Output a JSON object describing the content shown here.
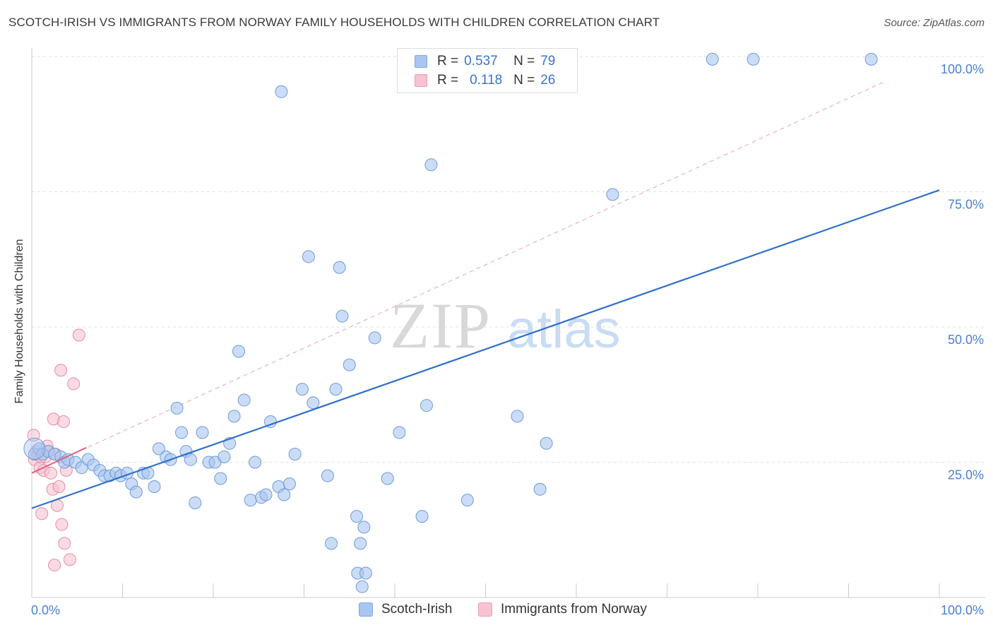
{
  "title": "SCOTCH-IRISH VS IMMIGRANTS FROM NORWAY FAMILY HOUSEHOLDS WITH CHILDREN CORRELATION CHART",
  "source": "Source: ZipAtlas.com",
  "watermark": {
    "zip": "ZIP",
    "atlas": "atlas"
  },
  "legend_top": [
    {
      "r_label": "R =",
      "r_value": "0.537",
      "n_label": "N =",
      "n_value": "79",
      "color": "#a9c6f0",
      "border": "#7ea6e0"
    },
    {
      "r_label": "R =",
      "r_value": "0.118",
      "n_label": "N =",
      "n_value": "26",
      "color": "#f7c3d2",
      "border": "#ee9ab4"
    }
  ],
  "legend_bottom": [
    {
      "label": "Scotch-Irish",
      "color": "#a9c6f0",
      "border": "#7ea6e0"
    },
    {
      "label": "Immigrants from Norway",
      "color": "#f7c3d2",
      "border": "#ee9ab4"
    }
  ],
  "chart_data": {
    "type": "scatter",
    "title": "SCOTCH-IRISH VS IMMIGRANTS FROM NORWAY FAMILY HOUSEHOLDS WITH CHILDREN CORRELATION CHART",
    "xlabel": "",
    "ylabel": "Family Households with Children",
    "xlim": [
      0,
      100
    ],
    "ylim": [
      0,
      100
    ],
    "x_tick_labels": [
      "0.0%",
      "100.0%"
    ],
    "y_ticks": [
      25,
      50,
      75,
      100
    ],
    "y_tick_labels": [
      "25.0%",
      "50.0%",
      "75.0%",
      "100.0%"
    ],
    "series": [
      {
        "name": "Scotch-Irish",
        "color": "#a9c6f0",
        "edge": "#6f9ad8",
        "trend": {
          "x": [
            0,
            100
          ],
          "y": [
            16.5,
            75.3
          ],
          "color": "#2f6fcc"
        },
        "points": [
          [
            0.3,
            26.5
          ],
          [
            0.8,
            27.5
          ],
          [
            1.2,
            26.5
          ],
          [
            1.8,
            27
          ],
          [
            2.5,
            26.5
          ],
          [
            3.2,
            26
          ],
          [
            3.6,
            25
          ],
          [
            4.0,
            25.5
          ],
          [
            4.8,
            25
          ],
          [
            5.5,
            24
          ],
          [
            6.2,
            25.5
          ],
          [
            6.8,
            24.5
          ],
          [
            7.5,
            23.5
          ],
          [
            8.0,
            22.5
          ],
          [
            8.6,
            22.5
          ],
          [
            9.3,
            23
          ],
          [
            9.8,
            22.5
          ],
          [
            10.5,
            23
          ],
          [
            11.0,
            21
          ],
          [
            11.5,
            19.5
          ],
          [
            12.3,
            23
          ],
          [
            12.8,
            23
          ],
          [
            13.5,
            20.5
          ],
          [
            14.0,
            27.5
          ],
          [
            14.8,
            26
          ],
          [
            15.3,
            25.5
          ],
          [
            16.0,
            35
          ],
          [
            16.5,
            30.5
          ],
          [
            17.0,
            27
          ],
          [
            17.5,
            25.5
          ],
          [
            18.0,
            17.5
          ],
          [
            18.8,
            30.5
          ],
          [
            19.5,
            25
          ],
          [
            20.2,
            25
          ],
          [
            20.8,
            22
          ],
          [
            21.2,
            26
          ],
          [
            21.8,
            28.5
          ],
          [
            22.3,
            33.5
          ],
          [
            22.8,
            45.5
          ],
          [
            23.4,
            36.5
          ],
          [
            24.1,
            18
          ],
          [
            24.6,
            25
          ],
          [
            25.3,
            18.5
          ],
          [
            25.8,
            19
          ],
          [
            26.3,
            32.5
          ],
          [
            27.2,
            20.5
          ],
          [
            27.8,
            19
          ],
          [
            28.4,
            21
          ],
          [
            29.0,
            26.5
          ],
          [
            29.8,
            38.5
          ],
          [
            30.5,
            63
          ],
          [
            31.0,
            36
          ],
          [
            32.6,
            22.5
          ],
          [
            33.0,
            10
          ],
          [
            33.5,
            38.5
          ],
          [
            33.9,
            61
          ],
          [
            34.2,
            52
          ],
          [
            35.0,
            43
          ],
          [
            35.8,
            15
          ],
          [
            36.2,
            10
          ],
          [
            35.9,
            4.5
          ],
          [
            36.4,
            2
          ],
          [
            36.8,
            4.5
          ],
          [
            36.6,
            13
          ],
          [
            37.8,
            48
          ],
          [
            39.2,
            22
          ],
          [
            40.5,
            30.5
          ],
          [
            43.0,
            15
          ],
          [
            43.5,
            35.5
          ],
          [
            44.0,
            80
          ],
          [
            48.0,
            18
          ],
          [
            53.5,
            33.5
          ],
          [
            56.0,
            20
          ],
          [
            56.7,
            28.5
          ],
          [
            64.0,
            74.5
          ],
          [
            75.0,
            99.5
          ],
          [
            79.5,
            99.5
          ],
          [
            92.5,
            99.5
          ],
          [
            27.5,
            93.5
          ]
        ]
      },
      {
        "name": "Immigrants from Norway",
        "color": "#f7c3d2",
        "edge": "#e98aa8",
        "trend": {
          "x": [
            0,
            6
          ],
          "y": [
            23,
            27.7
          ],
          "color": "#e0607f"
        },
        "points": [
          [
            0.2,
            30
          ],
          [
            0.3,
            25.5
          ],
          [
            0.5,
            27
          ],
          [
            0.7,
            26.5
          ],
          [
            0.9,
            24
          ],
          [
            1.1,
            15.5
          ],
          [
            1.3,
            23.5
          ],
          [
            1.5,
            26
          ],
          [
            1.7,
            28
          ],
          [
            1.9,
            27
          ],
          [
            2.1,
            23
          ],
          [
            2.3,
            20
          ],
          [
            2.4,
            33
          ],
          [
            2.5,
            6
          ],
          [
            2.6,
            26.5
          ],
          [
            2.8,
            17
          ],
          [
            3.0,
            20.5
          ],
          [
            3.2,
            42
          ],
          [
            3.3,
            13.5
          ],
          [
            3.5,
            32.5
          ],
          [
            3.6,
            10
          ],
          [
            3.8,
            23.5
          ],
          [
            4.2,
            7
          ],
          [
            4.6,
            39.5
          ],
          [
            5.2,
            48.5
          ],
          [
            1.0,
            26
          ]
        ]
      }
    ],
    "diagonal_reference": {
      "x": [
        0,
        100
      ],
      "y": [
        23,
        100
      ],
      "style": "dashed",
      "color": "#e8a0b4"
    }
  }
}
